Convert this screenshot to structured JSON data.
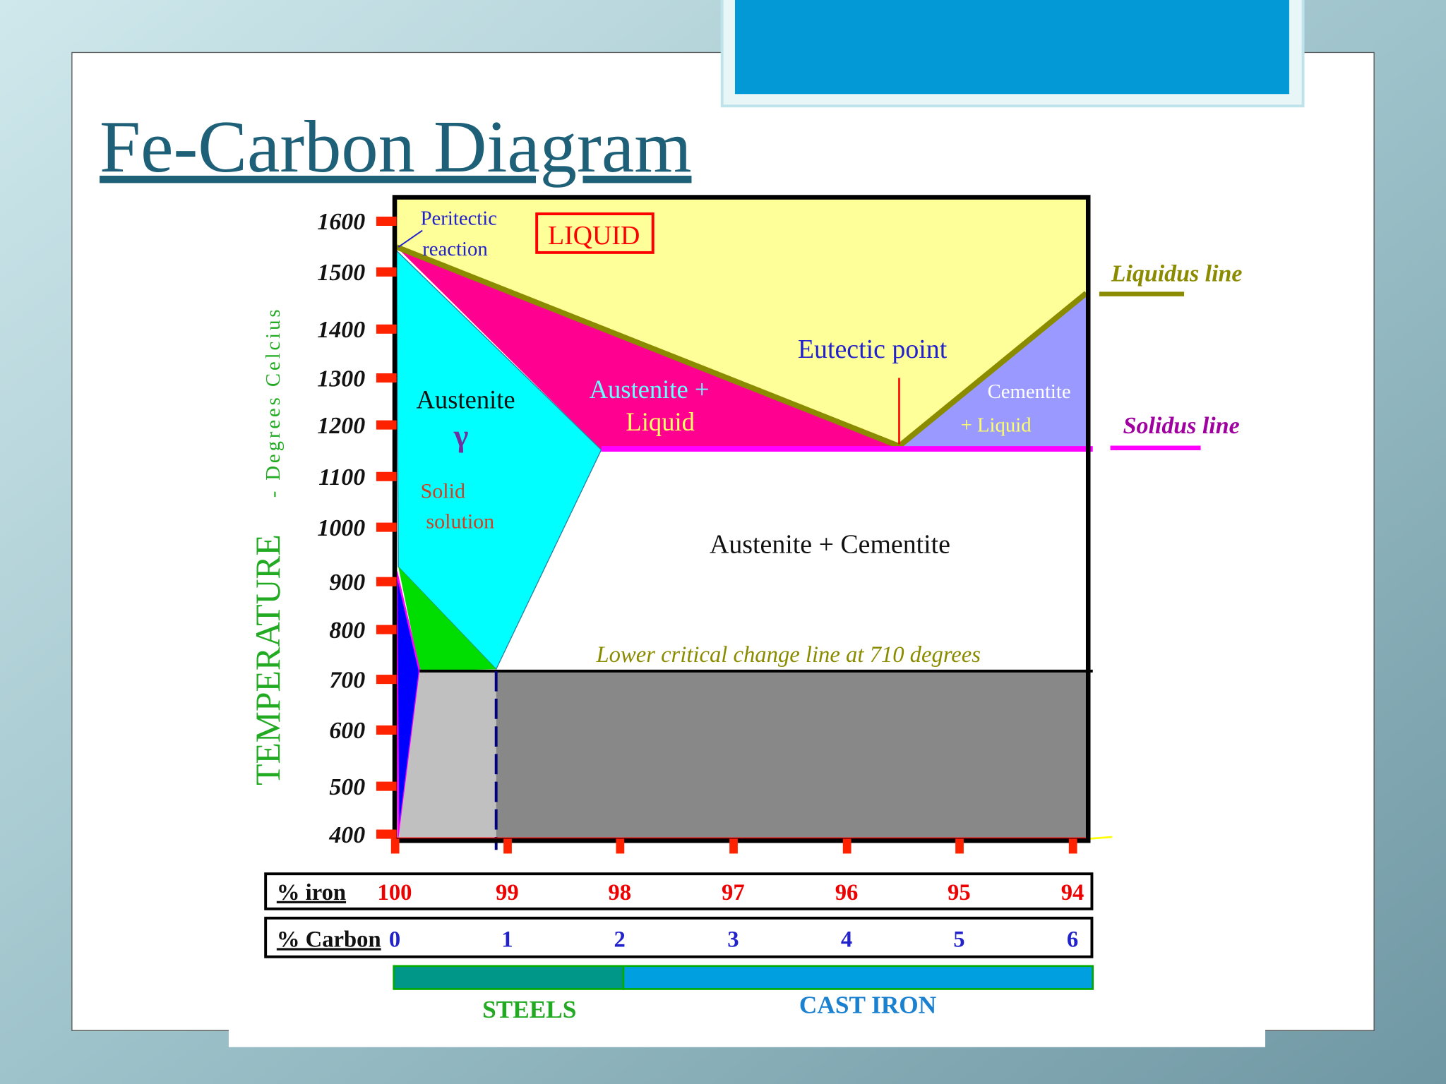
{
  "title": "Fe-Carbon Diagram",
  "diagram": {
    "y_axis_label": "TEMPERATURE",
    "y_axis_unit": "- Degrees Celcius",
    "temperature_ticks": [
      1600,
      1500,
      1400,
      1300,
      1200,
      1100,
      1000,
      900,
      800,
      700,
      600,
      500,
      400
    ],
    "peritectic": [
      "Peritectic",
      "reaction"
    ],
    "liquid": "LIQUID",
    "austenite": "Austenite",
    "gamma": "γ",
    "solid_solution": [
      "Solid",
      "solution"
    ],
    "austenite_liquid": [
      "Austenite +",
      "Liquid"
    ],
    "eutectic_point": "Eutectic point",
    "cementite_liquid": [
      "Cementite",
      "+ Liquid"
    ],
    "austenite_cementite": "Austenite + Cementite",
    "lower_critical": "Lower critical change line at 710 degrees",
    "liquidus_line": "Liquidus line",
    "solidus_line": "Solidus line"
  },
  "composition_table": {
    "rows": [
      {
        "header": "% iron",
        "values": [
          100,
          99,
          98,
          97,
          96,
          95,
          94
        ]
      },
      {
        "header": "% Carbon",
        "values": [
          0,
          1,
          2,
          3,
          4,
          5,
          6
        ]
      }
    ]
  },
  "product_bands": [
    "STEELS",
    "CAST IRON"
  ]
}
